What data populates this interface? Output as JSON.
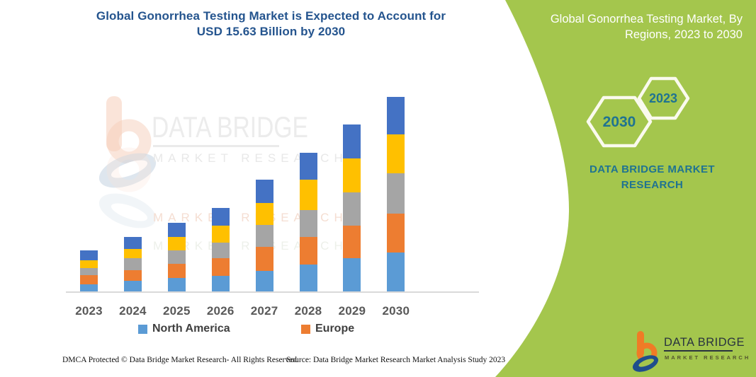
{
  "main_title": {
    "lines": [
      "Global Gonorrhea Testing Market is Expected to Account for",
      "USD 15.63 Billion by 2030"
    ],
    "color": "#24548E"
  },
  "side_panel": {
    "background_color": "#A4C64D",
    "title_lines": [
      "Global Gonorrhea Testing Market, By",
      "Regions, 2023 to 2030"
    ],
    "hexagons": [
      {
        "label": "2030"
      },
      {
        "label": "2023"
      }
    ],
    "brand_lines": [
      "DATA BRIDGE MARKET",
      "RESEARCH"
    ],
    "accent_color": "#1F7391",
    "hexagon_border_color": "#FAFAEE"
  },
  "watermark": {
    "title": "DATA BRIDGE",
    "subtitle": "MARKET RESEARCH"
  },
  "logo": {
    "title": "DATA BRIDGE",
    "subtitle": "MARKET RESEARCH"
  },
  "chart_data": {
    "type": "bar",
    "stacked": true,
    "title": "Global Gonorrhea Testing Market is Expected to Account for USD 15.63 Billion by 2030",
    "unit": "USD Billion",
    "categories": [
      "2023",
      "2024",
      "2025",
      "2026",
      "2027",
      "2028",
      "2029",
      "2030"
    ],
    "series": [
      {
        "name": "North America",
        "color": "#5B9BD5",
        "values": [
          0.62,
          0.91,
          1.13,
          1.3,
          1.7,
          2.21,
          2.72,
          3.17
        ]
      },
      {
        "name": "Europe",
        "color": "#ED7D31",
        "values": [
          0.74,
          0.85,
          1.13,
          1.42,
          1.92,
          2.21,
          2.6,
          3.11
        ]
      },
      {
        "name": "",
        "color": "#A5A5A5",
        "values": [
          0.57,
          0.96,
          1.08,
          1.25,
          1.75,
          2.15,
          2.66,
          3.23
        ]
      },
      {
        "name": "",
        "color": "#FFC000",
        "values": [
          0.62,
          0.74,
          1.08,
          1.36,
          1.75,
          2.43,
          2.72,
          3.11
        ]
      },
      {
        "name": "",
        "color": "#4472C4",
        "values": [
          0.79,
          0.96,
          1.13,
          1.42,
          1.87,
          2.15,
          2.72,
          3.0
        ]
      }
    ],
    "totals": [
      3.34,
      4.42,
      5.55,
      6.75,
      9.0,
      11.15,
      13.42,
      15.63
    ],
    "legend": [
      {
        "label": "North America",
        "color": "#5B9BD5"
      },
      {
        "label": "Europe",
        "color": "#ED7D31"
      }
    ],
    "legend_position": "bottom",
    "grid": false,
    "xlabel": "",
    "ylabel": "",
    "y_axis_visible": false
  },
  "footer": {
    "dmca": "DMCA Protected © Data Bridge Market Research-  All Rights Reserved.",
    "source": "Source: Data Bridge Market Research  Market Analysis Study 2023"
  }
}
